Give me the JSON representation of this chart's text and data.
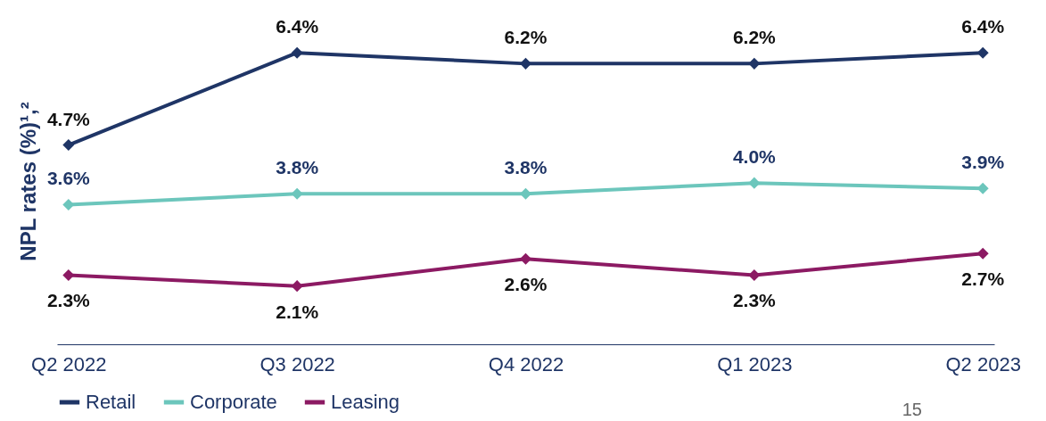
{
  "chart_data": {
    "type": "line",
    "ylabel": "NPL rates (%)¹,²",
    "categories": [
      "Q2 2022",
      "Q3 2022",
      "Q4 2022",
      "Q1 2023",
      "Q2 2023"
    ],
    "series": [
      {
        "name": "Retail",
        "color": "#1f3566",
        "values": [
          4.7,
          6.4,
          6.2,
          6.2,
          6.4
        ],
        "value_labels": [
          "4.7%",
          "6.4%",
          "6.2%",
          "6.2%",
          "6.4%"
        ]
      },
      {
        "name": "Corporate",
        "color": "#6cc6bc",
        "values": [
          3.6,
          3.8,
          3.8,
          4.0,
          3.9
        ],
        "value_labels": [
          "3.6%",
          "3.8%",
          "3.8%",
          "4.0%",
          "3.9%"
        ]
      },
      {
        "name": "Leasing",
        "color": "#8c1a63",
        "values": [
          2.3,
          2.1,
          2.6,
          2.3,
          2.7
        ],
        "value_labels": [
          "2.3%",
          "2.1%",
          "2.6%",
          "2.3%",
          "2.7%"
        ]
      }
    ],
    "marker": "diamond",
    "legend": "bottom",
    "grid": false,
    "annotations": [
      "15"
    ]
  }
}
